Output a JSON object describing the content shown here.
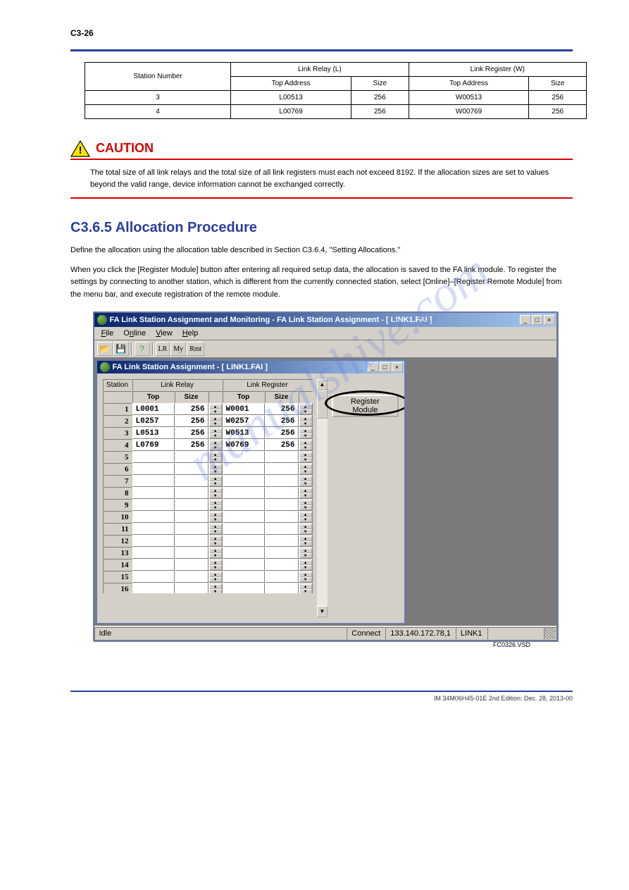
{
  "page_number": "C3-26",
  "watermark": "manualshive.com",
  "allocation_table": {
    "headers": {
      "station": "Station Number",
      "link_relay": "Link Relay (L)",
      "link_register": "Link Register (W)",
      "top_addr_a": "Top Address",
      "size_a": "Size",
      "top_addr_b": "Top Address",
      "size_b": "Size"
    },
    "rows": [
      {
        "station": "3",
        "lr_top": "L00513",
        "lr_size": "256",
        "lw_top": "W00513",
        "lw_size": "256"
      },
      {
        "station": "4",
        "lr_top": "L00769",
        "lr_size": "256",
        "lw_top": "W00769",
        "lw_size": "256"
      }
    ]
  },
  "caution": {
    "title": "CAUTION",
    "text": "The total size of all link relays and the total size of all link registers must each not exceed 8192. If the allocation sizes are set to values beyond the valid range, device information cannot be exchanged correctly."
  },
  "section": {
    "heading": "C3.6.5 Allocation Procedure",
    "para1": "Define the allocation using the allocation table described in Section C3.6.4, \"Setting Allocations.\"",
    "para2": "When you click the [Register Module] button after entering all required setup data, the allocation is saved to the FA link module. To register the settings by connecting to another station, which is different from the currently connected station, select [Online]–[Register Remote Module] from the menu bar, and execute registration of the remote module."
  },
  "app": {
    "outer_title": "FA Link Station Assignment and Monitoring - FA Link Station Assignment - [ LINK1.FAI ]",
    "inner_title": "FA Link Station Assignment - [ LINK1.FAI ]",
    "menu": {
      "file": "File",
      "online": "Online",
      "view": "View",
      "help": "Help"
    },
    "toolbar": {
      "lr": "LR",
      "my": "My",
      "rmt": "Rmt"
    },
    "grid": {
      "h_station": "Station",
      "h_link_relay": "Link Relay",
      "h_link_register": "Link Register",
      "h_top": "Top",
      "h_size": "Size",
      "rows": [
        {
          "idx": "1",
          "lr_top": "L0001",
          "lr_size": "256",
          "lw_top": "W0001",
          "lw_size": "256"
        },
        {
          "idx": "2",
          "lr_top": "L0257",
          "lr_size": "256",
          "lw_top": "W0257",
          "lw_size": "256"
        },
        {
          "idx": "3",
          "lr_top": "L0513",
          "lr_size": "256",
          "lw_top": "W0513",
          "lw_size": "256"
        },
        {
          "idx": "4",
          "lr_top": "L0769",
          "lr_size": "256",
          "lw_top": "W0769",
          "lw_size": "256"
        },
        {
          "idx": "5",
          "lr_top": "",
          "lr_size": "",
          "lw_top": "",
          "lw_size": ""
        },
        {
          "idx": "6",
          "lr_top": "",
          "lr_size": "",
          "lw_top": "",
          "lw_size": ""
        },
        {
          "idx": "7",
          "lr_top": "",
          "lr_size": "",
          "lw_top": "",
          "lw_size": ""
        },
        {
          "idx": "8",
          "lr_top": "",
          "lr_size": "",
          "lw_top": "",
          "lw_size": ""
        },
        {
          "idx": "9",
          "lr_top": "",
          "lr_size": "",
          "lw_top": "",
          "lw_size": ""
        },
        {
          "idx": "10",
          "lr_top": "",
          "lr_size": "",
          "lw_top": "",
          "lw_size": ""
        },
        {
          "idx": "11",
          "lr_top": "",
          "lr_size": "",
          "lw_top": "",
          "lw_size": ""
        },
        {
          "idx": "12",
          "lr_top": "",
          "lr_size": "",
          "lw_top": "",
          "lw_size": ""
        },
        {
          "idx": "13",
          "lr_top": "",
          "lr_size": "",
          "lw_top": "",
          "lw_size": ""
        },
        {
          "idx": "14",
          "lr_top": "",
          "lr_size": "",
          "lw_top": "",
          "lw_size": ""
        },
        {
          "idx": "15",
          "lr_top": "",
          "lr_size": "",
          "lw_top": "",
          "lw_size": ""
        },
        {
          "idx": "16",
          "lr_top": "",
          "lr_size": "",
          "lw_top": "",
          "lw_size": ""
        }
      ]
    },
    "register_button": "Register Module",
    "status": {
      "idle": "Idle",
      "connect": "Connect",
      "ip": "133.140.172.78,1",
      "link": "LINK1"
    },
    "figure_id": "FC0326.VSD"
  },
  "footer": "IM 34M06H45-01E          2nd Edition: Dec. 28, 2013-00"
}
